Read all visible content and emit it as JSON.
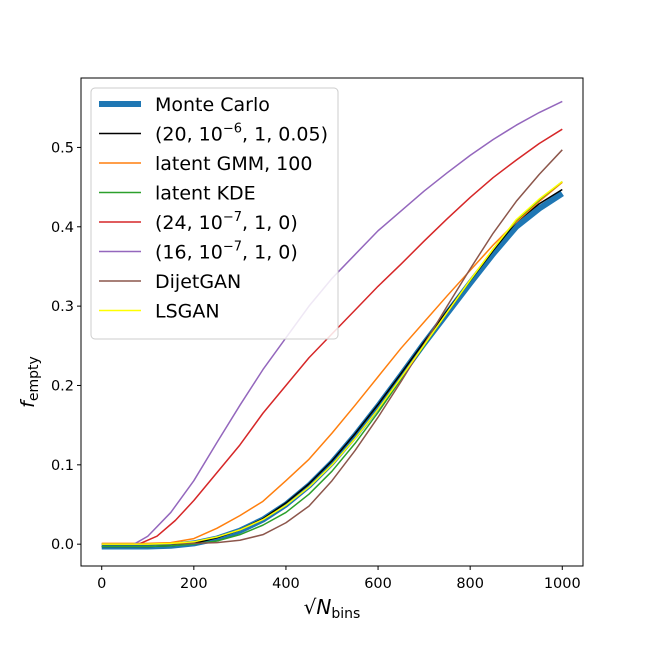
{
  "chart_data": {
    "type": "line",
    "title": "",
    "xlabel": "√N_bins",
    "xlabel_main": "N",
    "xlabel_sub": "bins",
    "ylabel": "f_empty",
    "ylabel_main": "f",
    "ylabel_sub": "empty",
    "xlim": [
      -45,
      1045
    ],
    "ylim": [
      -0.0275,
      0.5875
    ],
    "xticks": [
      0,
      200,
      400,
      600,
      800,
      1000
    ],
    "xtick_labels": [
      "0",
      "200",
      "400",
      "600",
      "800",
      "1000"
    ],
    "yticks": [
      0.0,
      0.1,
      0.2,
      0.3,
      0.4,
      0.5
    ],
    "ytick_labels": [
      "0.0",
      "0.1",
      "0.2",
      "0.3",
      "0.4",
      "0.5"
    ],
    "legend_position": "upper-left",
    "series": [
      {
        "name": "Monte Carlo",
        "label_parts": [
          "Monte Carlo"
        ],
        "color": "#1f77b4",
        "width": 6,
        "x": [
          0,
          100,
          150,
          200,
          250,
          300,
          350,
          400,
          450,
          500,
          550,
          600,
          650,
          700,
          750,
          800,
          850,
          900,
          950,
          1000
        ],
        "y": [
          -0.003,
          -0.003,
          -0.002,
          0.001,
          0.007,
          0.017,
          0.031,
          0.05,
          0.074,
          0.103,
          0.137,
          0.174,
          0.213,
          0.253,
          0.291,
          0.329,
          0.366,
          0.4,
          0.423,
          0.442
        ]
      },
      {
        "name": "(20, 10^-6, 1, 0.05)",
        "label_parts": [
          "(20, 10",
          "−6",
          ", 1, 0.05)"
        ],
        "color": "#000000",
        "width": 1.5,
        "x": [
          0,
          100,
          150,
          200,
          250,
          300,
          350,
          400,
          450,
          500,
          550,
          600,
          650,
          700,
          750,
          800,
          850,
          900,
          950,
          1000
        ],
        "y": [
          -0.003,
          -0.003,
          -0.002,
          0.001,
          0.008,
          0.018,
          0.032,
          0.052,
          0.076,
          0.105,
          0.139,
          0.176,
          0.215,
          0.255,
          0.294,
          0.332,
          0.37,
          0.406,
          0.429,
          0.447
        ]
      },
      {
        "name": "latent GMM, 100",
        "label_parts": [
          "latent GMM, 100"
        ],
        "color": "#ff7f0e",
        "width": 1.5,
        "x": [
          0,
          100,
          150,
          200,
          250,
          300,
          350,
          400,
          450,
          500,
          550,
          600,
          650,
          700,
          750,
          800,
          850,
          900,
          950,
          1000
        ],
        "y": [
          0.001,
          0.001,
          0.002,
          0.007,
          0.02,
          0.036,
          0.054,
          0.08,
          0.107,
          0.14,
          0.175,
          0.211,
          0.247,
          0.28,
          0.313,
          0.345,
          0.377,
          0.406,
          0.432,
          0.456
        ]
      },
      {
        "name": "latent KDE",
        "label_parts": [
          "latent KDE"
        ],
        "color": "#2ca02c",
        "width": 1.5,
        "x": [
          0,
          100,
          150,
          200,
          250,
          300,
          350,
          400,
          450,
          500,
          550,
          600,
          650,
          700,
          750,
          800,
          850,
          900,
          950,
          1000
        ],
        "y": [
          -0.003,
          -0.003,
          -0.002,
          0.0,
          0.004,
          0.012,
          0.024,
          0.04,
          0.063,
          0.092,
          0.127,
          0.166,
          0.208,
          0.25,
          0.292,
          0.332,
          0.372,
          0.408,
          0.434,
          0.457
        ]
      },
      {
        "name": "(24, 10^-7, 1, 0)",
        "label_parts": [
          "(24, 10",
          "−7",
          ", 1, 0)"
        ],
        "color": "#d62728",
        "width": 1.5,
        "x": [
          0,
          80,
          120,
          160,
          200,
          250,
          300,
          350,
          400,
          450,
          500,
          550,
          600,
          650,
          700,
          750,
          800,
          850,
          900,
          950,
          1000
        ],
        "y": [
          0.0,
          0.0,
          0.01,
          0.03,
          0.055,
          0.09,
          0.125,
          0.165,
          0.2,
          0.235,
          0.265,
          0.295,
          0.325,
          0.353,
          0.382,
          0.41,
          0.437,
          0.462,
          0.484,
          0.505,
          0.523
        ]
      },
      {
        "name": "(16, 10^-7, 1, 0)",
        "label_parts": [
          "(16, 10",
          "−7",
          ", 1, 0)"
        ],
        "color": "#9467bd",
        "width": 1.5,
        "x": [
          0,
          70,
          100,
          150,
          200,
          250,
          300,
          350,
          400,
          450,
          500,
          550,
          600,
          650,
          700,
          750,
          800,
          850,
          900,
          950,
          1000
        ],
        "y": [
          0.0,
          0.0,
          0.01,
          0.04,
          0.08,
          0.128,
          0.175,
          0.22,
          0.26,
          0.3,
          0.335,
          0.365,
          0.395,
          0.42,
          0.445,
          0.468,
          0.49,
          0.51,
          0.528,
          0.544,
          0.558
        ]
      },
      {
        "name": "DijetGAN",
        "label_parts": [
          "DijetGAN"
        ],
        "color": "#8c564b",
        "width": 1.5,
        "x": [
          0,
          100,
          200,
          250,
          300,
          350,
          400,
          450,
          500,
          550,
          600,
          650,
          700,
          750,
          800,
          850,
          900,
          950,
          1000
        ],
        "y": [
          0.0,
          0.0,
          0.001,
          0.002,
          0.005,
          0.012,
          0.027,
          0.048,
          0.08,
          0.118,
          0.16,
          0.205,
          0.252,
          0.3,
          0.347,
          0.392,
          0.432,
          0.466,
          0.497
        ]
      },
      {
        "name": "LSGAN",
        "label_parts": [
          "LSGAN"
        ],
        "color": "#ffff00",
        "width": 1.5,
        "x": [
          0,
          100,
          150,
          200,
          250,
          300,
          350,
          400,
          450,
          500,
          550,
          600,
          650,
          700,
          750,
          800,
          850,
          900,
          950,
          1000
        ],
        "y": [
          0.0,
          0.0,
          0.001,
          0.003,
          0.009,
          0.018,
          0.031,
          0.049,
          0.072,
          0.1,
          0.133,
          0.17,
          0.21,
          0.251,
          0.292,
          0.333,
          0.372,
          0.409,
          0.435,
          0.457
        ]
      }
    ]
  }
}
